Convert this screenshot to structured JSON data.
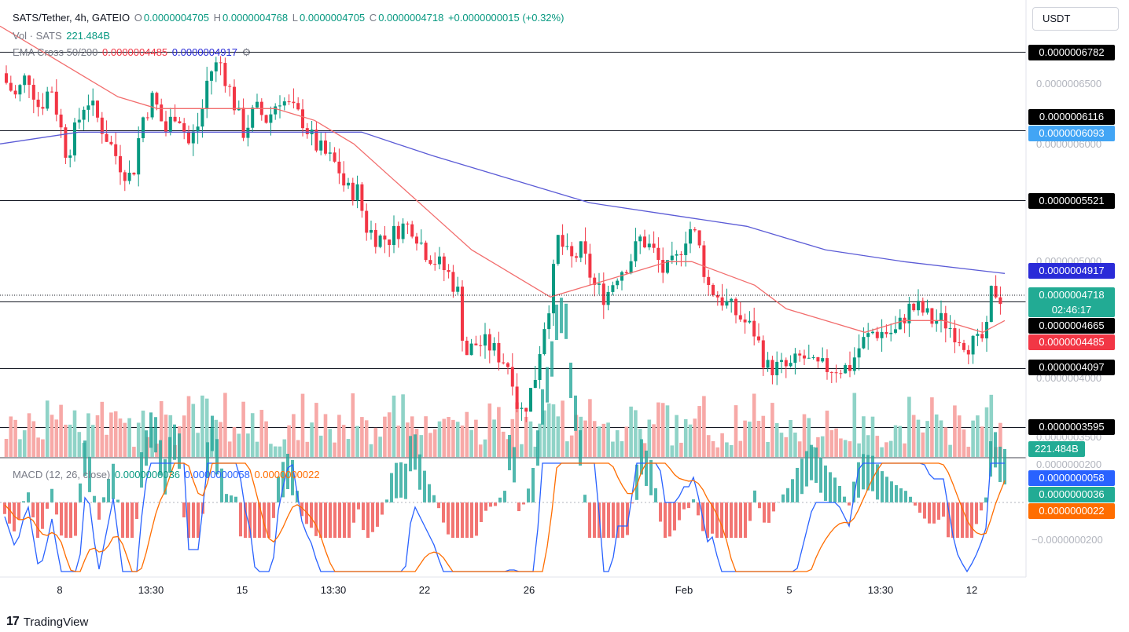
{
  "header": {
    "symbol": "SATS/Tether, 4h, GATEIO",
    "o_label": "O",
    "o_value": "0.0000004705",
    "h_label": "H",
    "h_value": "0.0000004768",
    "l_label": "L",
    "l_value": "0.0000004705",
    "c_label": "C",
    "c_value": "0.0000004718",
    "change": "+0.0000000015 (+0.32%)",
    "vol_label": "Vol · SATS",
    "vol_value": "221.484B",
    "ema_label": "EMA Cross 50/200",
    "ema50_value": "0.0000004485",
    "ema200_value": "0.0000004917",
    "macd_label": "MACD (12, 26, close)",
    "macd_hist": "0.0000000036",
    "macd_line": "0.0000000058",
    "macd_signal": "0.0000000022"
  },
  "unit_button": "USDT",
  "price_ticks": [
    "0.0000006500",
    "0.0000006000",
    "0.0000005000",
    "0.0000004000",
    "0.0000003500",
    "0.0000000200",
    "−0.0000000200"
  ],
  "horizontal_levels": [
    {
      "value": "0.0000006782",
      "y": 6.782e-07
    },
    {
      "value": "0.0000006116",
      "y": 6.116e-07
    },
    {
      "value": "0.0000005521",
      "y": 5.521e-07
    },
    {
      "value": "0.0000004665",
      "y": 4.665e-07
    },
    {
      "value": "0.0000004097",
      "y": 4.097e-07
    },
    {
      "value": "0.0000003595",
      "y": 3.595e-07
    }
  ],
  "tags": {
    "ema200": "0.0000006093",
    "ema200_now": "0.0000004917",
    "last_price": "0.0000004718",
    "countdown": "02:46:17",
    "ema50": "0.0000004485",
    "volume": "221.484B",
    "macd_line": "0.0000000058",
    "macd_hist": "0.0000000036",
    "macd_signal": "0.0000000022"
  },
  "x_ticks": [
    "8",
    "13:30",
    "15",
    "13:30",
    "22",
    "26",
    "Feb",
    "5",
    "13:30",
    "12"
  ],
  "branding": "TradingView",
  "colors": {
    "up": "#089981",
    "down": "#f23645",
    "ema50": "#f23645",
    "ema200": "#5b5bd6",
    "macd": "#2962ff",
    "signal": "#ff6d00"
  },
  "chart_data": {
    "type": "candlestick",
    "title": "SATS/Tether, 4h, GATEIO",
    "price_range": [
      3.3e-07,
      7.1e-07
    ],
    "close_path": [
      [
        0,
        6.6e-07
      ],
      [
        20,
        6.4e-07
      ],
      [
        35,
        6.6e-07
      ],
      [
        50,
        6.3e-07
      ],
      [
        65,
        6.5e-07
      ],
      [
        75,
        6.2e-07
      ],
      [
        85,
        5.9e-07
      ],
      [
        95,
        6.1e-07
      ],
      [
        110,
        6.4e-07
      ],
      [
        125,
        6.2e-07
      ],
      [
        140,
        6e-07
      ],
      [
        155,
        5.8e-07
      ],
      [
        168,
        5.7e-07
      ],
      [
        180,
        6.2e-07
      ],
      [
        195,
        6.4e-07
      ],
      [
        210,
        6.1e-07
      ],
      [
        225,
        6.3e-07
      ],
      [
        240,
        6e-07
      ],
      [
        255,
        6.2e-07
      ],
      [
        265,
        6.6e-07
      ],
      [
        280,
        6.7e-07
      ],
      [
        295,
        6.4e-07
      ],
      [
        310,
        6.1e-07
      ],
      [
        325,
        6.3e-07
      ],
      [
        340,
        6.2e-07
      ],
      [
        355,
        6.4e-07
      ],
      [
        370,
        6.3e-07
      ],
      [
        385,
        6.2e-07
      ],
      [
        400,
        6e-07
      ],
      [
        415,
        5.9e-07
      ],
      [
        430,
        5.8e-07
      ],
      [
        440,
        5.6e-07
      ],
      [
        455,
        5.6e-07
      ],
      [
        465,
        5.3e-07
      ],
      [
        480,
        5.2e-07
      ],
      [
        495,
        5.2e-07
      ],
      [
        510,
        5.3e-07
      ],
      [
        525,
        5.3e-07
      ],
      [
        540,
        5.1e-07
      ],
      [
        555,
        5e-07
      ],
      [
        570,
        4.9e-07
      ],
      [
        585,
        4.7e-07
      ],
      [
        590,
        4.2e-07
      ],
      [
        605,
        4.3e-07
      ],
      [
        620,
        4.3e-07
      ],
      [
        635,
        4.2e-07
      ],
      [
        650,
        4.1e-07
      ],
      [
        660,
        3.7e-07
      ],
      [
        670,
        3.8e-07
      ],
      [
        680,
        4e-07
      ],
      [
        690,
        4.4e-07
      ],
      [
        700,
        4.7e-07
      ],
      [
        710,
        5.2e-07
      ],
      [
        725,
        5e-07
      ],
      [
        740,
        5.1e-07
      ],
      [
        755,
        4.8e-07
      ],
      [
        770,
        4.7e-07
      ],
      [
        785,
        4.9e-07
      ],
      [
        800,
        5e-07
      ],
      [
        815,
        5.2e-07
      ],
      [
        830,
        5.1e-07
      ],
      [
        845,
        4.9e-07
      ],
      [
        860,
        5e-07
      ],
      [
        870,
        5.2e-07
      ],
      [
        880,
        5.3e-07
      ],
      [
        890,
        5.1e-07
      ],
      [
        900,
        4.8e-07
      ],
      [
        915,
        4.7e-07
      ],
      [
        930,
        4.6e-07
      ],
      [
        945,
        4.5e-07
      ],
      [
        960,
        4.4e-07
      ],
      [
        975,
        4.1e-07
      ],
      [
        990,
        4.1e-07
      ],
      [
        1005,
        4.1e-07
      ],
      [
        1020,
        4.2e-07
      ],
      [
        1035,
        4.1e-07
      ],
      [
        1050,
        4.1e-07
      ],
      [
        1065,
        4.1e-07
      ],
      [
        1080,
        4.1e-07
      ],
      [
        1095,
        4.3e-07
      ],
      [
        1110,
        4.4e-07
      ],
      [
        1125,
        4.4e-07
      ],
      [
        1140,
        4.4e-07
      ],
      [
        1155,
        4.6e-07
      ],
      [
        1170,
        4.6e-07
      ],
      [
        1185,
        4.5e-07
      ],
      [
        1200,
        4.5e-07
      ],
      [
        1215,
        4.4e-07
      ],
      [
        1230,
        4.3e-07
      ],
      [
        1245,
        4.3e-07
      ],
      [
        1255,
        4.4e-07
      ],
      [
        1262,
        4.8e-07
      ],
      [
        1270,
        4.7e-07
      ],
      [
        1278,
        4.7e-07
      ]
    ],
    "ema50_path": [
      [
        0,
        7e-07
      ],
      [
        50,
        6.8e-07
      ],
      [
        100,
        6.6e-07
      ],
      [
        150,
        6.4e-07
      ],
      [
        200,
        6.3e-07
      ],
      [
        250,
        6.3e-07
      ],
      [
        300,
        6.3e-07
      ],
      [
        350,
        6.3e-07
      ],
      [
        400,
        6.2e-07
      ],
      [
        450,
        6e-07
      ],
      [
        500,
        5.7e-07
      ],
      [
        550,
        5.4e-07
      ],
      [
        600,
        5.1e-07
      ],
      [
        650,
        4.9e-07
      ],
      [
        700,
        4.7e-07
      ],
      [
        750,
        4.8e-07
      ],
      [
        800,
        4.9e-07
      ],
      [
        850,
        5e-07
      ],
      [
        880,
        5e-07
      ],
      [
        920,
        4.9e-07
      ],
      [
        960,
        4.8e-07
      ],
      [
        1000,
        4.6e-07
      ],
      [
        1050,
        4.5e-07
      ],
      [
        1100,
        4.4e-07
      ],
      [
        1150,
        4.5e-07
      ],
      [
        1200,
        4.5e-07
      ],
      [
        1250,
        4.4e-07
      ],
      [
        1278,
        4.5e-07
      ]
    ],
    "ema200_path": [
      [
        0,
        6e-07
      ],
      [
        100,
        6.1e-07
      ],
      [
        200,
        6.1e-07
      ],
      [
        300,
        6.1e-07
      ],
      [
        380,
        6.1e-07
      ],
      [
        460,
        6.1e-07
      ],
      [
        550,
        5.9e-07
      ],
      [
        650,
        5.7e-07
      ],
      [
        750,
        5.5e-07
      ],
      [
        850,
        5.4e-07
      ],
      [
        950,
        5.3e-07
      ],
      [
        1050,
        5.1e-07
      ],
      [
        1150,
        5e-07
      ],
      [
        1278,
        4.9e-07
      ]
    ]
  }
}
